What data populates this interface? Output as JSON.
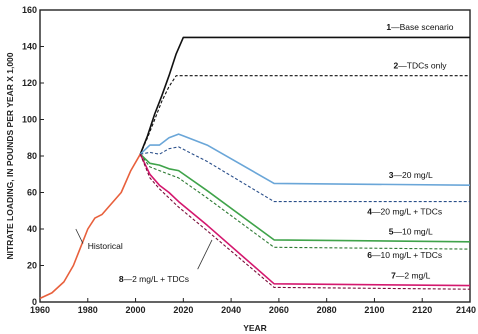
{
  "chart_data": {
    "type": "line",
    "title": "",
    "xlabel": "YEAR",
    "ylabel": "NITRATE LOADING, IN POUNDS PER YEAR X 1,000",
    "xlim": [
      1960,
      2140
    ],
    "ylim": [
      0,
      160
    ],
    "xticks": [
      1960,
      1980,
      2000,
      2020,
      2040,
      2060,
      2080,
      2100,
      2120,
      2140
    ],
    "yticks": [
      0,
      20,
      40,
      60,
      80,
      100,
      120,
      140,
      160
    ],
    "grid": false,
    "legend": "inline labels",
    "series": [
      {
        "name": "Historical",
        "color": "#e8603c",
        "dash": "solid",
        "points": [
          [
            1960,
            2
          ],
          [
            1965,
            5
          ],
          [
            1970,
            11
          ],
          [
            1974,
            20
          ],
          [
            1977,
            30
          ],
          [
            1980,
            40
          ],
          [
            1983,
            46
          ],
          [
            1986,
            48
          ],
          [
            1990,
            54
          ],
          [
            1994,
            60
          ],
          [
            1998,
            72
          ],
          [
            2002,
            81
          ]
        ]
      },
      {
        "name": "Base scenario",
        "num": "1",
        "color": "#111111",
        "dash": "solid",
        "points": [
          [
            2002,
            81
          ],
          [
            2005,
            91
          ],
          [
            2008,
            103
          ],
          [
            2011,
            113
          ],
          [
            2014,
            124
          ],
          [
            2017,
            136
          ],
          [
            2020,
            145
          ],
          [
            2140,
            145
          ]
        ]
      },
      {
        "name": "TDCs only",
        "num": "2",
        "color": "#111111",
        "dash": "dashed",
        "points": [
          [
            2002,
            81
          ],
          [
            2005,
            90
          ],
          [
            2008,
            100
          ],
          [
            2011,
            110
          ],
          [
            2014,
            118
          ],
          [
            2017,
            124
          ],
          [
            2140,
            124
          ]
        ]
      },
      {
        "name": "20 mg/L",
        "num": "3",
        "color": "#6aa6d8",
        "dash": "solid",
        "points": [
          [
            2002,
            81
          ],
          [
            2006,
            86
          ],
          [
            2010,
            86
          ],
          [
            2014,
            90
          ],
          [
            2018,
            92
          ],
          [
            2020,
            91
          ],
          [
            2030,
            86
          ],
          [
            2058,
            65
          ],
          [
            2140,
            64
          ]
        ]
      },
      {
        "name": "20 mg/L + TDCs",
        "num": "4",
        "color": "#2a4f8a",
        "dash": "dashed",
        "points": [
          [
            2002,
            81
          ],
          [
            2006,
            82
          ],
          [
            2010,
            81
          ],
          [
            2014,
            84
          ],
          [
            2018,
            85
          ],
          [
            2030,
            77
          ],
          [
            2058,
            55
          ],
          [
            2140,
            55
          ]
        ]
      },
      {
        "name": "10 mg/L",
        "num": "5",
        "color": "#3fa34a",
        "dash": "solid",
        "points": [
          [
            2002,
            81
          ],
          [
            2006,
            76
          ],
          [
            2010,
            75
          ],
          [
            2014,
            73
          ],
          [
            2018,
            72
          ],
          [
            2030,
            61
          ],
          [
            2058,
            34
          ],
          [
            2140,
            33
          ]
        ]
      },
      {
        "name": "10 mg/L + TDCs",
        "num": "6",
        "color": "#2d7a33",
        "dash": "dashed",
        "points": [
          [
            2002,
            81
          ],
          [
            2006,
            74
          ],
          [
            2010,
            72
          ],
          [
            2014,
            70
          ],
          [
            2018,
            68
          ],
          [
            2030,
            57
          ],
          [
            2058,
            30
          ],
          [
            2140,
            29
          ]
        ]
      },
      {
        "name": "2 mg/L",
        "num": "7",
        "color": "#d4176e",
        "dash": "solid",
        "points": [
          [
            2002,
            81
          ],
          [
            2006,
            70
          ],
          [
            2010,
            64
          ],
          [
            2014,
            60
          ],
          [
            2018,
            55
          ],
          [
            2030,
            42
          ],
          [
            2058,
            10
          ],
          [
            2140,
            9
          ]
        ]
      },
      {
        "name": "2 mg/L + TDCs",
        "num": "8",
        "color": "#7a0f3a",
        "dash": "dashed",
        "points": [
          [
            2002,
            81
          ],
          [
            2006,
            68
          ],
          [
            2010,
            62
          ],
          [
            2014,
            57
          ],
          [
            2018,
            52
          ],
          [
            2030,
            39
          ],
          [
            2058,
            8
          ],
          [
            2140,
            7
          ]
        ]
      }
    ],
    "annotations": [
      {
        "num": "1",
        "text": "Base scenario",
        "at": [
          2105,
          149
        ]
      },
      {
        "num": "2",
        "text": "TDCs only",
        "at": [
          2108,
          128
        ]
      },
      {
        "num": "3",
        "text": "20 mg/L",
        "at": [
          2106,
          68
        ]
      },
      {
        "num": "4",
        "text": "20 mg/L + TDCs",
        "at": [
          2097,
          48
        ]
      },
      {
        "num": "5",
        "text": "10 mg/L",
        "at": [
          2106,
          37
        ]
      },
      {
        "num": "6",
        "text": "10 mg/L + TDCs",
        "at": [
          2097,
          24
        ]
      },
      {
        "num": "7",
        "text": "2 mg/L",
        "at": [
          2107,
          13
        ]
      },
      {
        "num": "8",
        "text": "2 mg/L + TDCs",
        "at": [
          1993,
          11
        ]
      },
      {
        "num": "",
        "text": "Historical",
        "at": [
          1980,
          29
        ]
      }
    ]
  }
}
